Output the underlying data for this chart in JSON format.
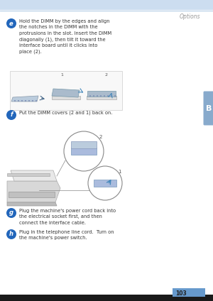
{
  "page_title": "Options",
  "page_number": "103",
  "chapter_letter": "B",
  "bg_color": "#ffffff",
  "header_bar_color": "#ccddf0",
  "header_line_color": "#99bbdd",
  "footer_bg_color": "#1a1a1a",
  "footer_bar_color": "#6699cc",
  "chapter_tab_color": "#88aacc",
  "step_circle_color": "#2266bb",
  "step_text_color": "#ffffff",
  "body_text_color": "#333333",
  "title_text_color": "#999999",
  "steps": [
    {
      "letter": "e",
      "text": "Hold the DIMM by the edges and align\nthe notches in the DIMM with the\nprotrusions in the slot. Insert the DIMM\ndiagonally (1), then tilt it toward the\ninterface board until it clicks into\nplace (2)."
    },
    {
      "letter": "f",
      "text": "Put the DIMM covers (2 and 1) back on."
    },
    {
      "letter": "g",
      "text": "Plug the machine's power cord back into\nthe electrical socket first, and then\nconnect the interface cable."
    },
    {
      "letter": "h",
      "text": "Plug in the telephone line cord.  Turn on\nthe machine's power switch."
    }
  ]
}
